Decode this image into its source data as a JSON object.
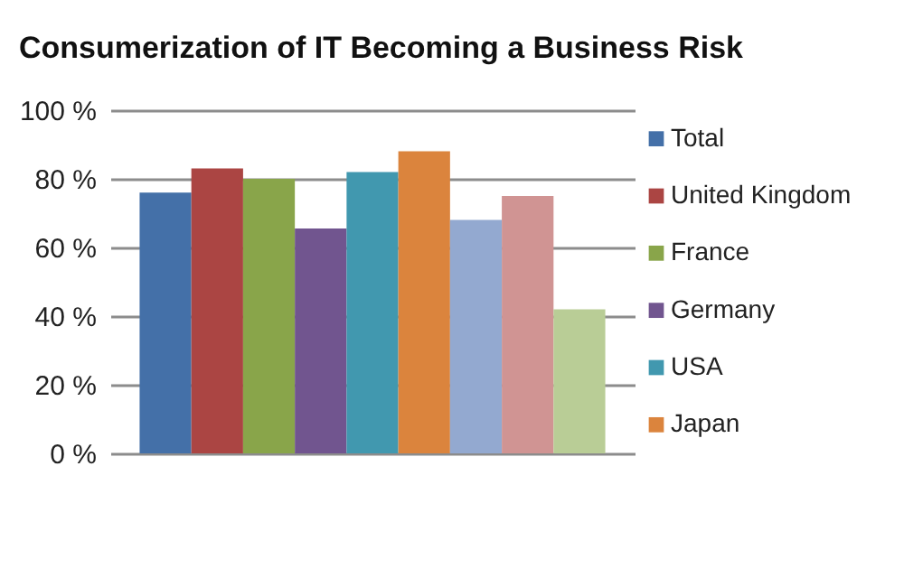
{
  "chart_data": {
    "type": "bar",
    "title": "Consumerization of IT Becoming a Business Risk",
    "categories": [
      null
    ],
    "series": [
      {
        "name": "Total",
        "color": "#4470a8",
        "values": [
          76
        ]
      },
      {
        "name": "United Kingdom",
        "color": "#ab4543",
        "values": [
          83
        ]
      },
      {
        "name": "France",
        "color": "#89a54a",
        "values": [
          80
        ]
      },
      {
        "name": "Germany",
        "color": "#71558f",
        "values": [
          65.5
        ]
      },
      {
        "name": "USA",
        "color": "#4198af",
        "values": [
          82
        ]
      },
      {
        "name": "Japan",
        "color": "#db843d",
        "values": [
          88
        ]
      },
      {
        "color": "#93a9d0",
        "values": [
          68
        ]
      },
      {
        "color": "#d09493",
        "values": [
          75
        ]
      },
      {
        "color": "#b9cd96",
        "values": [
          42
        ]
      }
    ],
    "ylim": [
      0,
      100
    ],
    "yticks": [
      {
        "value": 0,
        "label": "0 %"
      },
      {
        "value": 20,
        "label": "20 %"
      },
      {
        "value": 40,
        "label": "40 %"
      },
      {
        "value": 60,
        "label": "60 %"
      },
      {
        "value": 80,
        "label": "80 %"
      },
      {
        "value": 100,
        "label": "100 %"
      }
    ],
    "grid": "y",
    "legend": "right"
  }
}
